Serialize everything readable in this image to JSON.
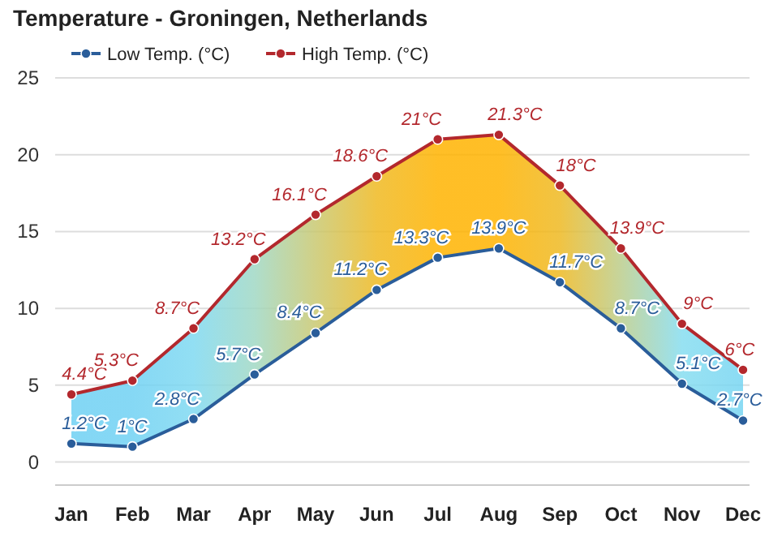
{
  "chart_data": {
    "type": "line",
    "title": "Temperature - Groningen, Netherlands",
    "categories": [
      "Jan",
      "Feb",
      "Mar",
      "Apr",
      "May",
      "Jun",
      "Jul",
      "Aug",
      "Sep",
      "Oct",
      "Nov",
      "Dec"
    ],
    "series": [
      {
        "name": "Low Temp. (°C)",
        "color": "#2a5d9a",
        "values": [
          1.2,
          1,
          2.8,
          5.7,
          8.4,
          11.2,
          13.3,
          13.9,
          11.7,
          8.7,
          5.1,
          2.7
        ],
        "value_labels": [
          "1.2°C",
          "1°C",
          "2.8°C",
          "5.7°C",
          "8.4°C",
          "11.2°C",
          "13.3°C",
          "13.9°C",
          "11.7°C",
          "8.7°C",
          "5.1°C",
          "2.7°C"
        ]
      },
      {
        "name": "High Temp. (°C)",
        "color": "#b3282d",
        "values": [
          4.4,
          5.3,
          8.7,
          13.2,
          16.1,
          18.6,
          21,
          21.3,
          18,
          13.9,
          9,
          6
        ],
        "value_labels": [
          "4.4°C",
          "5.3°C",
          "8.7°C",
          "13.2°C",
          "16.1°C",
          "18.6°C",
          "21°C",
          "21.3°C",
          "18°C",
          "13.9°C",
          "9°C",
          "6°C"
        ],
        "lower": [
          1.2,
          1,
          2.8,
          5.7,
          8.4,
          11.2,
          13.3,
          13.9,
          11.7,
          8.7,
          5.1,
          2.7
        ],
        "upper": [
          4.4,
          5.3,
          8.7,
          13.2,
          16.1,
          18.6,
          21,
          21.3,
          18,
          13.9,
          9,
          6
        ]
      }
    ],
    "ylim": [
      -1.5,
      25
    ],
    "yticks": [
      0,
      5,
      10,
      15,
      20,
      25
    ],
    "grid": "y",
    "legend": "top",
    "marker": "circle",
    "line_style": "solid"
  }
}
